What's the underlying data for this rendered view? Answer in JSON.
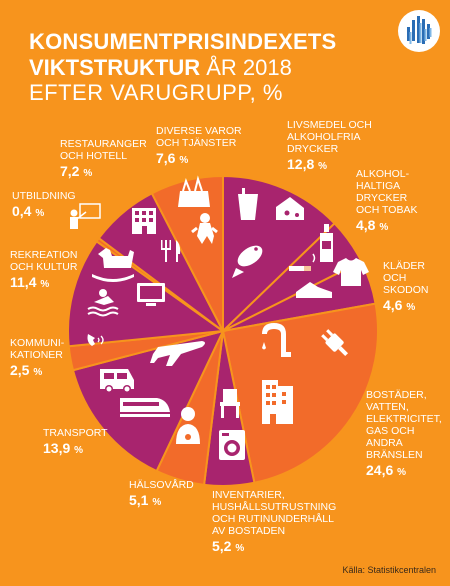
{
  "title": {
    "line1": "KONSUMENTPRISINDEXETS",
    "line2_bold": "VIKTSTRUKTUR",
    "line2_year": "ÅR 2018",
    "line3": "EFTER VARUGRUPP, %"
  },
  "source": "Källa: Statistikcentralen",
  "colors": {
    "background": "#f7941d",
    "magenta": "#a8246e",
    "orange": "#f26b2a",
    "divider": "#f7941d"
  },
  "chart_data": {
    "type": "pie",
    "title": "KONSUMENTPRISINDEXETS VIKTSTRUKTUR ÅR 2018 EFTER VARUGRUPP, %",
    "unit": "%",
    "start_angle_deg": 0,
    "direction": "clockwise",
    "slices": [
      {
        "label": "LIVSMEDEL OCH ALKOHOLFRIA DRYCKER",
        "value": 12.8,
        "display": "12,8",
        "color": "#a8246e",
        "icons": [
          "drink-glass-icon",
          "cheese-icon",
          "fish-icon"
        ]
      },
      {
        "label": "ALKOHOLHALTIGA DRYCKER OCH TOBAK",
        "value": 4.8,
        "display": "4,8",
        "color": "#a8246e",
        "icons": [
          "bottle-icon",
          "cigarette-icon"
        ]
      },
      {
        "label": "KLÄDER OCH SKODON",
        "value": 4.6,
        "display": "4,6",
        "color": "#a8246e",
        "icons": [
          "shirt-icon",
          "shoe-icon"
        ]
      },
      {
        "label": "BOSTÄDER, VATTEN, ELEKTRICITET, GAS OCH ANDRA BRÄNSLEN",
        "value": 24.6,
        "display": "24,6",
        "color": "#f26b2a",
        "icons": [
          "faucet-icon",
          "power-plug-icon",
          "building-icon"
        ]
      },
      {
        "label": "INVENTARIER, HUSHÅLLSUTRUSTNING OCH RUTINUNDERHÅLL AV BOSTADEN",
        "value": 5.2,
        "display": "5,2",
        "color": "#a8246e",
        "icons": [
          "chair-icon",
          "washing-machine-icon"
        ]
      },
      {
        "label": "HÄLSOVÅRD",
        "value": 5.1,
        "display": "5,1",
        "color": "#f26b2a",
        "icons": [
          "doctor-icon"
        ]
      },
      {
        "label": "TRANSPORT",
        "value": 13.9,
        "display": "13,9",
        "color": "#a8246e",
        "icons": [
          "airplane-icon",
          "van-icon",
          "train-icon"
        ]
      },
      {
        "label": "KOMMUNIKATIONER",
        "value": 2.5,
        "display": "2,5",
        "color": "#f26b2a",
        "icons": [
          "phone-icon"
        ]
      },
      {
        "label": "REKREATION OCH KULTUR",
        "value": 11.4,
        "display": "11,4",
        "color": "#a8246e",
        "icons": [
          "rocking-horse-icon",
          "swimmer-icon",
          "tv-icon"
        ]
      },
      {
        "label": "UTBILDNING",
        "value": 0.4,
        "display": "0,4",
        "color": "#f26b2a",
        "icons": [
          "teacher-icon"
        ]
      },
      {
        "label": "RESTAURANGER OCH HOTELL",
        "value": 7.2,
        "display": "7,2",
        "color": "#a8246e",
        "icons": [
          "hotel-icon",
          "cutlery-icon"
        ]
      },
      {
        "label": "DIVERSE VAROR OCH TJÄNSTER",
        "value": 7.6,
        "display": "7,6",
        "color": "#f26b2a",
        "icons": [
          "shopping-bag-icon",
          "baby-icon"
        ]
      }
    ]
  },
  "labels": [
    {
      "name": "LIVSMEDEL OCH\nALKOHOLFRIA\nDRYCKER",
      "value": "12,8"
    },
    {
      "name": "ALKOHOL-\nHALTIGA\nDRYCKER\nOCH TOBAK",
      "value": "4,8"
    },
    {
      "name": "KLÄDER\nOCH\nSKODON",
      "value": "4,6"
    },
    {
      "name": "BOSTÄDER,\nVATTEN,\nELEKTRICITET,\nGAS OCH\nANDRA\nBRÄNSLEN",
      "value": "24,6"
    },
    {
      "name": "INVENTARIER,\nHUSHÅLLSUTRUSTNING\nOCH RUTINUNDERHÅLL\nAV BOSTADEN",
      "value": "5,2"
    },
    {
      "name": "HÄLSOVÅRD",
      "value": "5,1"
    },
    {
      "name": "TRANSPORT",
      "value": "13,9"
    },
    {
      "name": "KOMMUNI-\nKATIONER",
      "value": "2,5"
    },
    {
      "name": "REKREATION\nOCH KULTUR",
      "value": "11,4"
    },
    {
      "name": "UTBILDNING",
      "value": "0,4"
    },
    {
      "name": "RESTAURANGER\nOCH HOTELL",
      "value": "7,2"
    },
    {
      "name": "DIVERSE VAROR\nOCH TJÄNSTER",
      "value": "7,6"
    }
  ],
  "pct_sign": "%"
}
